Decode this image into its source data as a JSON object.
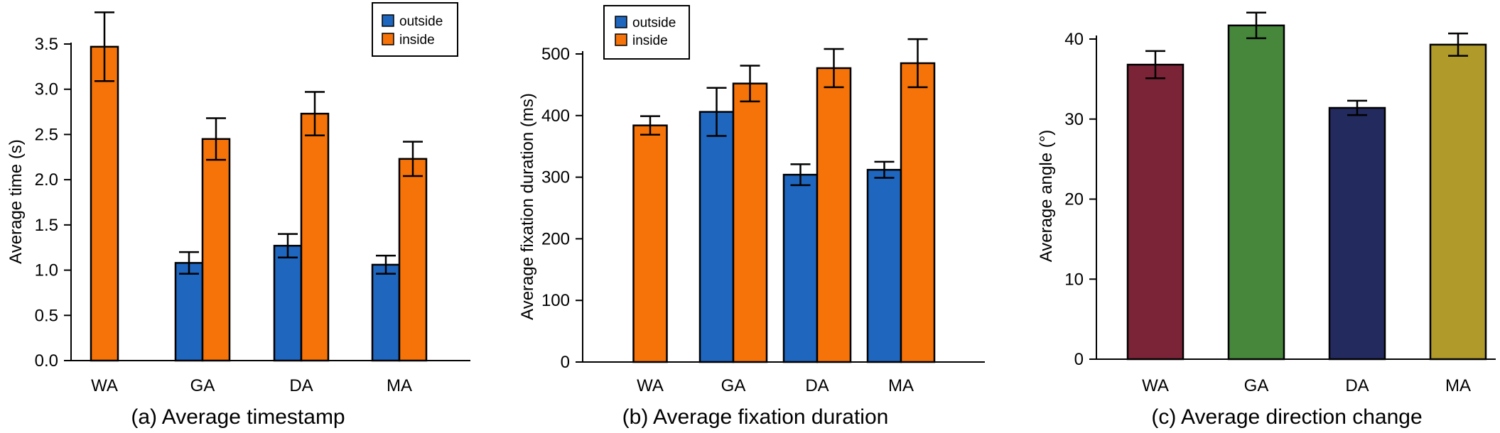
{
  "colors": {
    "outside": "#1f66bf",
    "inside": "#f57309",
    "wa": "#7b2438",
    "ga": "#46873c",
    "da": "#232a5e",
    "ma": "#b09a2a",
    "stroke": "#000000"
  },
  "chart_data": [
    {
      "type": "bar",
      "caption": "(a)  Average timestamp",
      "title": "",
      "xlabel": "",
      "ylabel": "Average time (s)",
      "categories": [
        "WA",
        "GA",
        "DA",
        "MA"
      ],
      "ylim": [
        0,
        3.5
      ],
      "yticks": [
        0.0,
        0.5,
        1.0,
        1.5,
        2.0,
        2.5,
        3.0,
        3.5
      ],
      "ytick_labels": [
        "0.0",
        "0.5",
        "1.0",
        "1.5",
        "2.0",
        "2.5",
        "3.0",
        "3.5"
      ],
      "legend": {
        "placement": "top-right",
        "entries": [
          "outside",
          "inside"
        ]
      },
      "series": [
        {
          "name": "outside",
          "values": [
            null,
            1.08,
            1.27,
            1.06
          ],
          "errors": [
            null,
            0.12,
            0.13,
            0.1
          ]
        },
        {
          "name": "inside",
          "values": [
            3.47,
            2.45,
            2.73,
            2.23
          ],
          "errors": [
            0.38,
            0.23,
            0.24,
            0.19
          ]
        }
      ]
    },
    {
      "type": "bar",
      "caption": "(b)  Average fixation duration",
      "title": "",
      "xlabel": "",
      "ylabel": "Average fixation duration (ms)",
      "categories": [
        "WA",
        "GA",
        "DA",
        "MA"
      ],
      "ylim": [
        0,
        500
      ],
      "yticks": [
        0,
        100,
        200,
        300,
        400,
        500
      ],
      "ytick_labels": [
        "0",
        "100",
        "200",
        "300",
        "400",
        "500"
      ],
      "legend": {
        "placement": "top-left",
        "entries": [
          "outside",
          "inside"
        ]
      },
      "series": [
        {
          "name": "outside",
          "values": [
            null,
            406,
            304,
            312
          ],
          "errors": [
            null,
            39,
            17,
            13
          ]
        },
        {
          "name": "inside",
          "values": [
            384,
            452,
            477,
            485
          ],
          "errors": [
            15,
            29,
            31,
            39
          ]
        }
      ]
    },
    {
      "type": "bar",
      "caption": "(c)  Average direction change",
      "title": "",
      "xlabel": "",
      "ylabel": "Average angle (°)",
      "categories": [
        "WA",
        "GA",
        "DA",
        "MA"
      ],
      "ylim": [
        0,
        40
      ],
      "yticks": [
        0,
        10,
        20,
        30,
        40
      ],
      "ytick_labels": [
        "0",
        "10",
        "20",
        "30",
        "40"
      ],
      "legend": {
        "placement": "none",
        "entries": []
      },
      "values": [
        36.8,
        41.7,
        31.4,
        39.3
      ],
      "errors": [
        1.7,
        1.6,
        0.9,
        1.4
      ]
    }
  ]
}
